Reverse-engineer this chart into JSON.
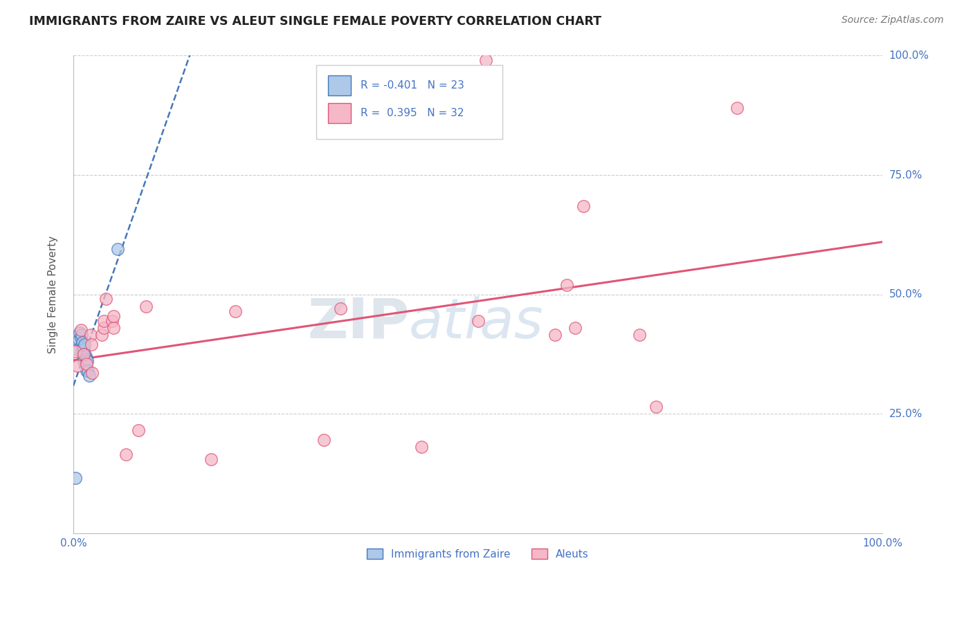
{
  "title": "IMMIGRANTS FROM ZAIRE VS ALEUT SINGLE FEMALE POVERTY CORRELATION CHART",
  "source": "Source: ZipAtlas.com",
  "ylabel": "Single Female Poverty",
  "xlim": [
    0.0,
    1.0
  ],
  "ylim": [
    0.0,
    1.0
  ],
  "watermark_zip": "ZIP",
  "watermark_atlas": "atlas",
  "blue_R": -0.401,
  "blue_N": 23,
  "pink_R": 0.395,
  "pink_N": 32,
  "blue_color": "#adc8e8",
  "pink_color": "#f5b8c8",
  "trend_blue_color": "#4477bb",
  "trend_pink_color": "#e05575",
  "blue_points_x": [
    0.003,
    0.005,
    0.007,
    0.008,
    0.009,
    0.01,
    0.01,
    0.011,
    0.011,
    0.012,
    0.012,
    0.013,
    0.013,
    0.014,
    0.014,
    0.015,
    0.015,
    0.016,
    0.016,
    0.017,
    0.018,
    0.02,
    0.055
  ],
  "blue_points_y": [
    0.115,
    0.385,
    0.405,
    0.42,
    0.41,
    0.395,
    0.415,
    0.4,
    0.38,
    0.39,
    0.37,
    0.385,
    0.36,
    0.395,
    0.375,
    0.37,
    0.355,
    0.365,
    0.34,
    0.36,
    0.34,
    0.33,
    0.595
  ],
  "pink_points_x": [
    0.003,
    0.005,
    0.009,
    0.013,
    0.016,
    0.021,
    0.022,
    0.023,
    0.035,
    0.038,
    0.038,
    0.04,
    0.048,
    0.05,
    0.05,
    0.065,
    0.08,
    0.09,
    0.17,
    0.2,
    0.31,
    0.33,
    0.43,
    0.5,
    0.51,
    0.595,
    0.61,
    0.62,
    0.63,
    0.7,
    0.72,
    0.82
  ],
  "pink_points_y": [
    0.38,
    0.35,
    0.425,
    0.375,
    0.355,
    0.415,
    0.395,
    0.335,
    0.415,
    0.43,
    0.445,
    0.49,
    0.445,
    0.43,
    0.455,
    0.165,
    0.215,
    0.475,
    0.155,
    0.465,
    0.195,
    0.47,
    0.18,
    0.445,
    0.99,
    0.415,
    0.52,
    0.43,
    0.685,
    0.415,
    0.265,
    0.89
  ],
  "axis_label_color": "#4472c4",
  "grid_color": "#cccccc",
  "background_color": "#ffffff",
  "title_color": "#222222"
}
